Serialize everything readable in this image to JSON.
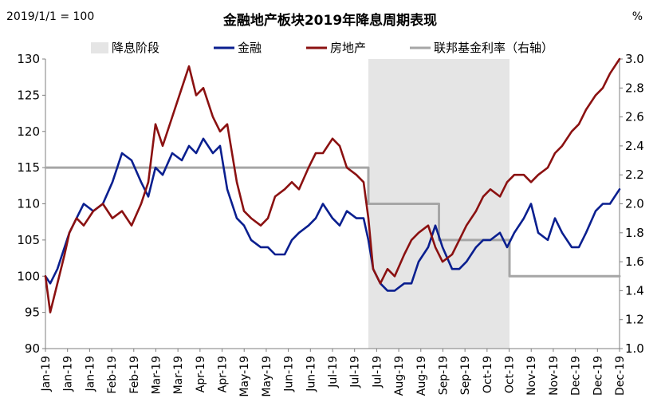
{
  "chart_data": {
    "type": "line",
    "title": "金融地产板块2019年降息周期表现",
    "left_note": "2019/1/1 = 100",
    "right_unit": "%",
    "legend": [
      {
        "key": "shade",
        "label": "降息阶段",
        "color": "#e5e5e5"
      },
      {
        "key": "finance",
        "label": "金融",
        "color": "#0a1f8f"
      },
      {
        "key": "realestate",
        "label": "房地产",
        "color": "#8b1111"
      },
      {
        "key": "fedrate",
        "label": "联邦基金利率（右轴）",
        "color": "#a6a6a6"
      }
    ],
    "y_left": {
      "min": 90,
      "max": 130,
      "ticks": [
        "90",
        "95",
        "100",
        "105",
        "110",
        "115",
        "120",
        "125",
        "130"
      ]
    },
    "y_right": {
      "min": 1.0,
      "max": 3.0,
      "ticks": [
        "1.0",
        "1.2",
        "1.4",
        "1.6",
        "1.8",
        "2.0",
        "2.2",
        "2.4",
        "2.6",
        "2.8",
        "3.0"
      ]
    },
    "x_domain": [
      0,
      24
    ],
    "x_ticks": [
      "Jan-19",
      "Jan-19",
      "Jan-19",
      "Feb-19",
      "Feb-19",
      "Mar-19",
      "Mar-19",
      "Apr-19",
      "Apr-19",
      "May-19",
      "May-19",
      "Jun-19",
      "Jun-19",
      "Jul-19",
      "Jul-19",
      "Jul-19",
      "Aug-19",
      "Aug-19",
      "Sep-19",
      "Sep-19",
      "Oct-19",
      "Oct-19",
      "Nov-19",
      "Nov-19",
      "Dec-19",
      "Dec-19",
      "Dec-19"
    ],
    "shade": [
      13.5,
      19.4
    ],
    "series": [
      {
        "key": "finance",
        "name": "金融",
        "axis": "left",
        "x": [
          0,
          0.2,
          0.5,
          0.8,
          1.0,
          1.3,
          1.6,
          2.0,
          2.4,
          2.8,
          3.2,
          3.6,
          4.0,
          4.3,
          4.6,
          4.9,
          5.3,
          5.7,
          6.0,
          6.3,
          6.6,
          7.0,
          7.3,
          7.6,
          8.0,
          8.3,
          8.6,
          9.0,
          9.3,
          9.6,
          10.0,
          10.3,
          10.6,
          11.0,
          11.3,
          11.6,
          12.0,
          12.3,
          12.6,
          13.0,
          13.3,
          13.5,
          13.7,
          14.0,
          14.3,
          14.6,
          15.0,
          15.3,
          15.6,
          16.0,
          16.3,
          16.6,
          17.0,
          17.3,
          17.6,
          18.0,
          18.3,
          18.6,
          19.0,
          19.3,
          19.6,
          20.0,
          20.3,
          20.6,
          21.0,
          21.3,
          21.6,
          22.0,
          22.3,
          22.6,
          23.0,
          23.3,
          23.6,
          24.0
        ],
        "values": [
          100,
          99,
          101,
          104,
          106,
          108,
          110,
          109,
          110,
          113,
          117,
          116,
          113,
          111,
          115,
          114,
          117,
          116,
          118,
          117,
          119,
          117,
          118,
          112,
          108,
          107,
          105,
          104,
          104,
          103,
          103,
          105,
          106,
          107,
          108,
          110,
          108,
          107,
          109,
          108,
          108,
          105,
          101,
          99,
          98,
          98,
          99,
          99,
          102,
          104,
          107,
          104,
          101,
          101,
          102,
          104,
          105,
          105,
          106,
          104,
          106,
          108,
          110,
          106,
          105,
          108,
          106,
          104,
          104,
          106,
          109,
          110,
          110,
          112
        ]
      },
      {
        "key": "realestate",
        "name": "房地产",
        "axis": "left",
        "x": [
          0,
          0.2,
          0.5,
          0.8,
          1.0,
          1.3,
          1.6,
          2.0,
          2.4,
          2.8,
          3.2,
          3.6,
          4.0,
          4.3,
          4.6,
          4.9,
          5.3,
          5.7,
          6.0,
          6.3,
          6.6,
          7.0,
          7.3,
          7.6,
          8.0,
          8.3,
          8.6,
          9.0,
          9.3,
          9.6,
          10.0,
          10.3,
          10.6,
          11.0,
          11.3,
          11.6,
          12.0,
          12.3,
          12.6,
          13.0,
          13.3,
          13.5,
          13.7,
          14.0,
          14.3,
          14.6,
          15.0,
          15.3,
          15.6,
          16.0,
          16.3,
          16.6,
          17.0,
          17.3,
          17.6,
          18.0,
          18.3,
          18.6,
          19.0,
          19.3,
          19.6,
          20.0,
          20.3,
          20.6,
          21.0,
          21.3,
          21.6,
          22.0,
          22.3,
          22.6,
          23.0,
          23.3,
          23.6,
          24.0
        ],
        "values": [
          100,
          95,
          99,
          103,
          106,
          108,
          107,
          109,
          110,
          108,
          109,
          107,
          110,
          113,
          121,
          118,
          122,
          126,
          129,
          125,
          126,
          122,
          120,
          121,
          113,
          109,
          108,
          107,
          108,
          111,
          112,
          113,
          112,
          115,
          117,
          117,
          119,
          118,
          115,
          114,
          113,
          108,
          101,
          99,
          101,
          100,
          103,
          105,
          106,
          107,
          104,
          102,
          103,
          105,
          107,
          109,
          111,
          112,
          111,
          113,
          114,
          114,
          113,
          114,
          115,
          117,
          118,
          120,
          121,
          123,
          125,
          126,
          128,
          130
        ]
      },
      {
        "key": "fedrate",
        "name": "联邦基金利率（右轴）",
        "axis": "right",
        "x": [
          0,
          13.5,
          13.5,
          16.45,
          16.45,
          19.4,
          19.4,
          24.0
        ],
        "values": [
          2.25,
          2.25,
          2.0,
          2.0,
          1.75,
          1.75,
          1.5,
          1.5
        ]
      }
    ]
  }
}
